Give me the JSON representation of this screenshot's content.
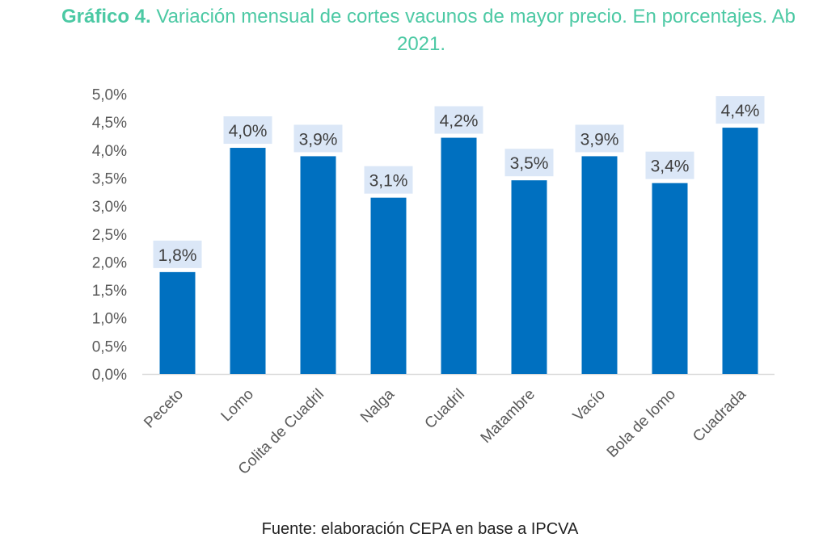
{
  "title": {
    "prefix": "Gráfico 4.",
    "line1": " Variación mensual de cortes vacunos de mayor precio. En porcentajes. Ab",
    "line2": "2021."
  },
  "source": "Fuente: elaboración CEPA en base a IPCVA",
  "colors": {
    "title": "#4cc9a4",
    "bar": "#0070c0",
    "label_bg": "#dbe7f7",
    "axis_text": "#595959"
  },
  "chart_data": {
    "type": "bar",
    "categories": [
      "Peceto",
      "Lomo",
      "Colita de Cuadril",
      "Nalga",
      "Cuadril",
      "Matambre",
      "Vacío",
      "Bola de lomo",
      "Cuadrada"
    ],
    "values": [
      1.8,
      4.0,
      3.9,
      3.1,
      4.2,
      3.5,
      3.9,
      3.4,
      4.4
    ],
    "bar_heights": [
      1.82,
      4.04,
      3.89,
      3.15,
      4.22,
      3.46,
      3.89,
      3.41,
      4.4
    ],
    "data_labels": [
      "1,8%",
      "4,0%",
      "3,9%",
      "3,1%",
      "4,2%",
      "3,5%",
      "3,9%",
      "3,4%",
      "4,4%"
    ],
    "y_ticks": [
      "0,0%",
      "0,5%",
      "1,0%",
      "1,5%",
      "2,0%",
      "2,5%",
      "3,0%",
      "3,5%",
      "4,0%",
      "4,5%",
      "5,0%"
    ],
    "ylim": [
      0,
      5.0
    ],
    "xlabel": "",
    "ylabel": "",
    "grid": false,
    "legend": "none"
  }
}
